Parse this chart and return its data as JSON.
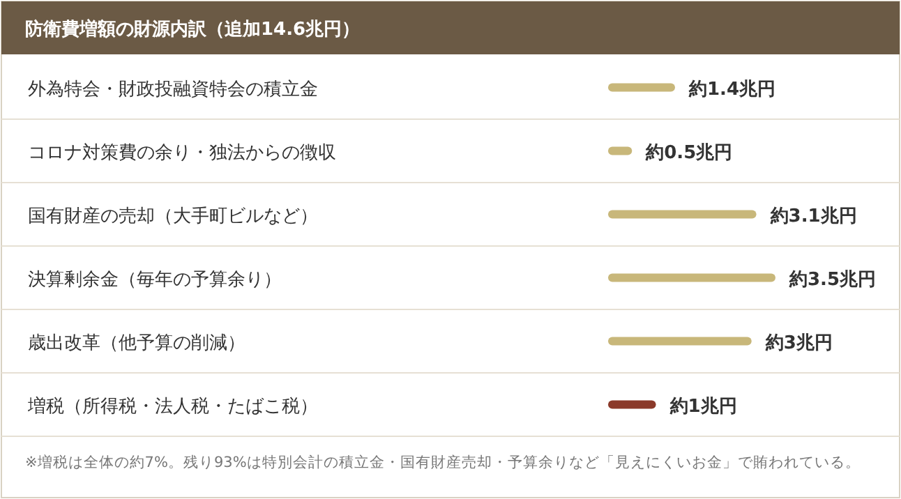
{
  "chart_data": {
    "type": "bar",
    "orientation": "horizontal",
    "title": "防衛費増額の財源内訳（追加14.6兆円）",
    "categories": [
      "外為特会・財政投融資特会の積立金",
      "コロナ対策費の余り・独法からの徴収",
      "国有財産の売却（大手町ビルなど）",
      "決算剰余金（毎年の予算余り）",
      "歳出改革（他予算の削減）",
      "増税（所得税・法人税・たばこ税）"
    ],
    "values": [
      1.4,
      0.5,
      3.1,
      3.5,
      3,
      1
    ],
    "colors": [
      "#c8b77a",
      "#c8b77a",
      "#c8b77a",
      "#c8b77a",
      "#c8b77a",
      "#8b3a2a"
    ],
    "value_labels": [
      "約1.4兆円",
      "約0.5兆円",
      "約3.1兆円",
      "約3.5兆円",
      "約3兆円",
      "約1兆円"
    ],
    "annotations": [
      "※増税は全体の約7%。残り93%は特別会計の積立金・国有財産売却・予算余りなど「見えにくいお金」で賄われている。"
    ]
  }
}
